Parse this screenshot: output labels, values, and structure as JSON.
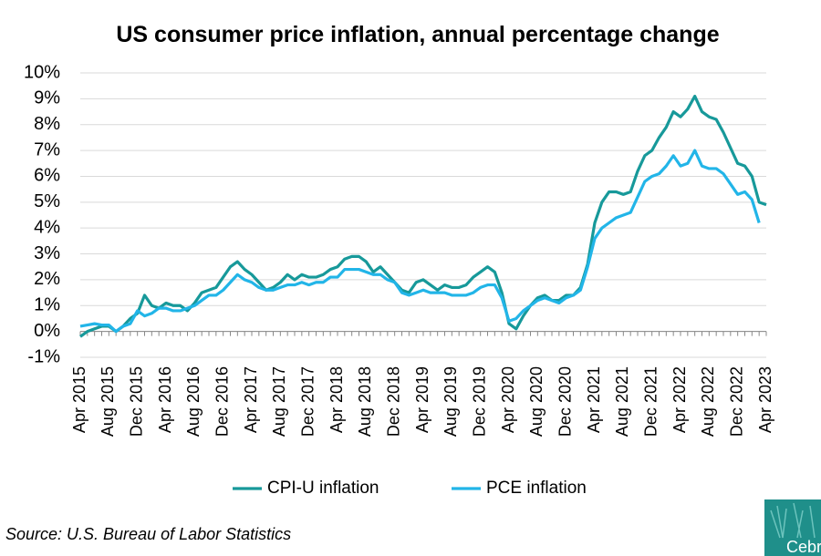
{
  "chart_data": {
    "type": "line",
    "title": "US consumer price inflation, annual percentage change",
    "source": "Source: U.S. Bureau of Labor Statistics",
    "logo": "Cebr",
    "categories": [
      "Apr 2015",
      null,
      null,
      null,
      "Aug 2015",
      null,
      null,
      null,
      "Dec 2015",
      null,
      null,
      null,
      "Apr 2016",
      null,
      null,
      null,
      "Aug 2016",
      null,
      null,
      null,
      "Dec 2016",
      null,
      null,
      null,
      "Apr 2017",
      null,
      null,
      null,
      "Aug 2017",
      null,
      null,
      null,
      "Dec 2017",
      null,
      null,
      null,
      "Apr 2018",
      null,
      null,
      null,
      "Aug 2018",
      null,
      null,
      null,
      "Dec 2018",
      null,
      null,
      null,
      "Apr 2019",
      null,
      null,
      null,
      "Aug 2019",
      null,
      null,
      null,
      "Dec 2019",
      null,
      null,
      null,
      "Apr 2020",
      null,
      null,
      null,
      "Aug 2020",
      null,
      null,
      null,
      "Dec 2020",
      null,
      null,
      null,
      "Apr 2021",
      null,
      null,
      null,
      "Aug 2021",
      null,
      null,
      null,
      "Dec 2021",
      null,
      null,
      null,
      "Apr 2022",
      null,
      null,
      null,
      "Aug 2022",
      null,
      null,
      null,
      "Dec 2022",
      null,
      null,
      null,
      "Apr 2023"
    ],
    "series": [
      {
        "name": "CPI-U inflation",
        "color": "#17999a",
        "values": [
          -0.2,
          0.0,
          0.1,
          0.2,
          0.2,
          0.0,
          0.2,
          0.5,
          0.7,
          1.4,
          1.0,
          0.9,
          1.1,
          1.0,
          1.0,
          0.8,
          1.1,
          1.5,
          1.6,
          1.7,
          2.1,
          2.5,
          2.7,
          2.4,
          2.2,
          1.9,
          1.6,
          1.7,
          1.9,
          2.2,
          2.0,
          2.2,
          2.1,
          2.1,
          2.2,
          2.4,
          2.5,
          2.8,
          2.9,
          2.9,
          2.7,
          2.3,
          2.5,
          2.2,
          1.9,
          1.6,
          1.5,
          1.9,
          2.0,
          1.8,
          1.6,
          1.8,
          1.7,
          1.7,
          1.8,
          2.1,
          2.3,
          2.5,
          2.3,
          1.5,
          0.3,
          0.1,
          0.6,
          1.0,
          1.3,
          1.4,
          1.2,
          1.2,
          1.4,
          1.4,
          1.7,
          2.6,
          4.2,
          5.0,
          5.4,
          5.4,
          5.3,
          5.4,
          6.2,
          6.8,
          7.0,
          7.5,
          7.9,
          8.5,
          8.3,
          8.6,
          9.1,
          8.5,
          8.3,
          8.2,
          7.7,
          7.1,
          6.5,
          6.4,
          6.0,
          5.0,
          4.9
        ]
      },
      {
        "name": "PCE inflation",
        "color": "#22b5e8",
        "values": [
          0.2,
          0.25,
          0.3,
          0.25,
          0.25,
          0.0,
          0.2,
          0.3,
          0.8,
          0.6,
          0.7,
          0.9,
          0.9,
          0.8,
          0.8,
          0.9,
          1.0,
          1.2,
          1.4,
          1.4,
          1.6,
          1.9,
          2.2,
          2.0,
          1.9,
          1.7,
          1.6,
          1.6,
          1.7,
          1.8,
          1.8,
          1.9,
          1.8,
          1.9,
          1.9,
          2.1,
          2.1,
          2.4,
          2.4,
          2.4,
          2.3,
          2.2,
          2.2,
          2.0,
          1.9,
          1.5,
          1.4,
          1.5,
          1.6,
          1.5,
          1.5,
          1.5,
          1.4,
          1.4,
          1.4,
          1.5,
          1.7,
          1.8,
          1.8,
          1.3,
          0.4,
          0.5,
          0.8,
          1.0,
          1.2,
          1.3,
          1.2,
          1.1,
          1.3,
          1.4,
          1.6,
          2.5,
          3.6,
          4.0,
          4.2,
          4.4,
          4.5,
          4.6,
          5.2,
          5.8,
          6.0,
          6.1,
          6.4,
          6.8,
          6.4,
          6.5,
          7.0,
          6.4,
          6.3,
          6.3,
          6.1,
          5.7,
          5.3,
          5.4,
          5.1,
          4.2,
          null
        ]
      }
    ],
    "ylim": [
      -1,
      10
    ],
    "yticks": [
      {
        "value": -1,
        "label": "-1%"
      },
      {
        "value": 0,
        "label": "0%"
      },
      {
        "value": 1,
        "label": "1%"
      },
      {
        "value": 2,
        "label": "2%"
      },
      {
        "value": 3,
        "label": "3%"
      },
      {
        "value": 4,
        "label": "4%"
      },
      {
        "value": 5,
        "label": "5%"
      },
      {
        "value": 6,
        "label": "6%"
      },
      {
        "value": 7,
        "label": "7%"
      },
      {
        "value": 8,
        "label": "8%"
      },
      {
        "value": 9,
        "label": "9%"
      },
      {
        "value": 10,
        "label": "10%"
      }
    ],
    "grid": true
  }
}
